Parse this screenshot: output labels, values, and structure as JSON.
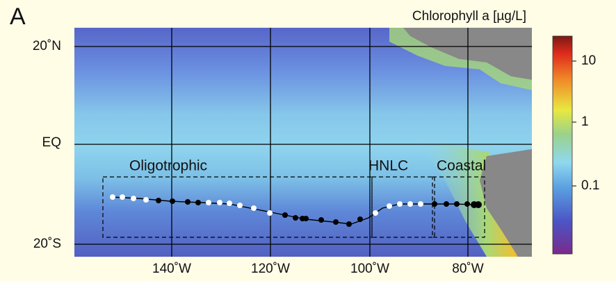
{
  "panel_label": "A",
  "colorbar": {
    "title": "Chlorophyll a [µg/L]",
    "ticks": [
      "10",
      "1",
      "0.1"
    ]
  },
  "lat_labels": [
    "20˚N",
    "EQ",
    "20˚S"
  ],
  "lon_labels": [
    "140˚W",
    "120˚W",
    "100˚W",
    "80˚W"
  ],
  "regions": [
    "Oligotrophic",
    "HNLC",
    "Coastal"
  ]
}
